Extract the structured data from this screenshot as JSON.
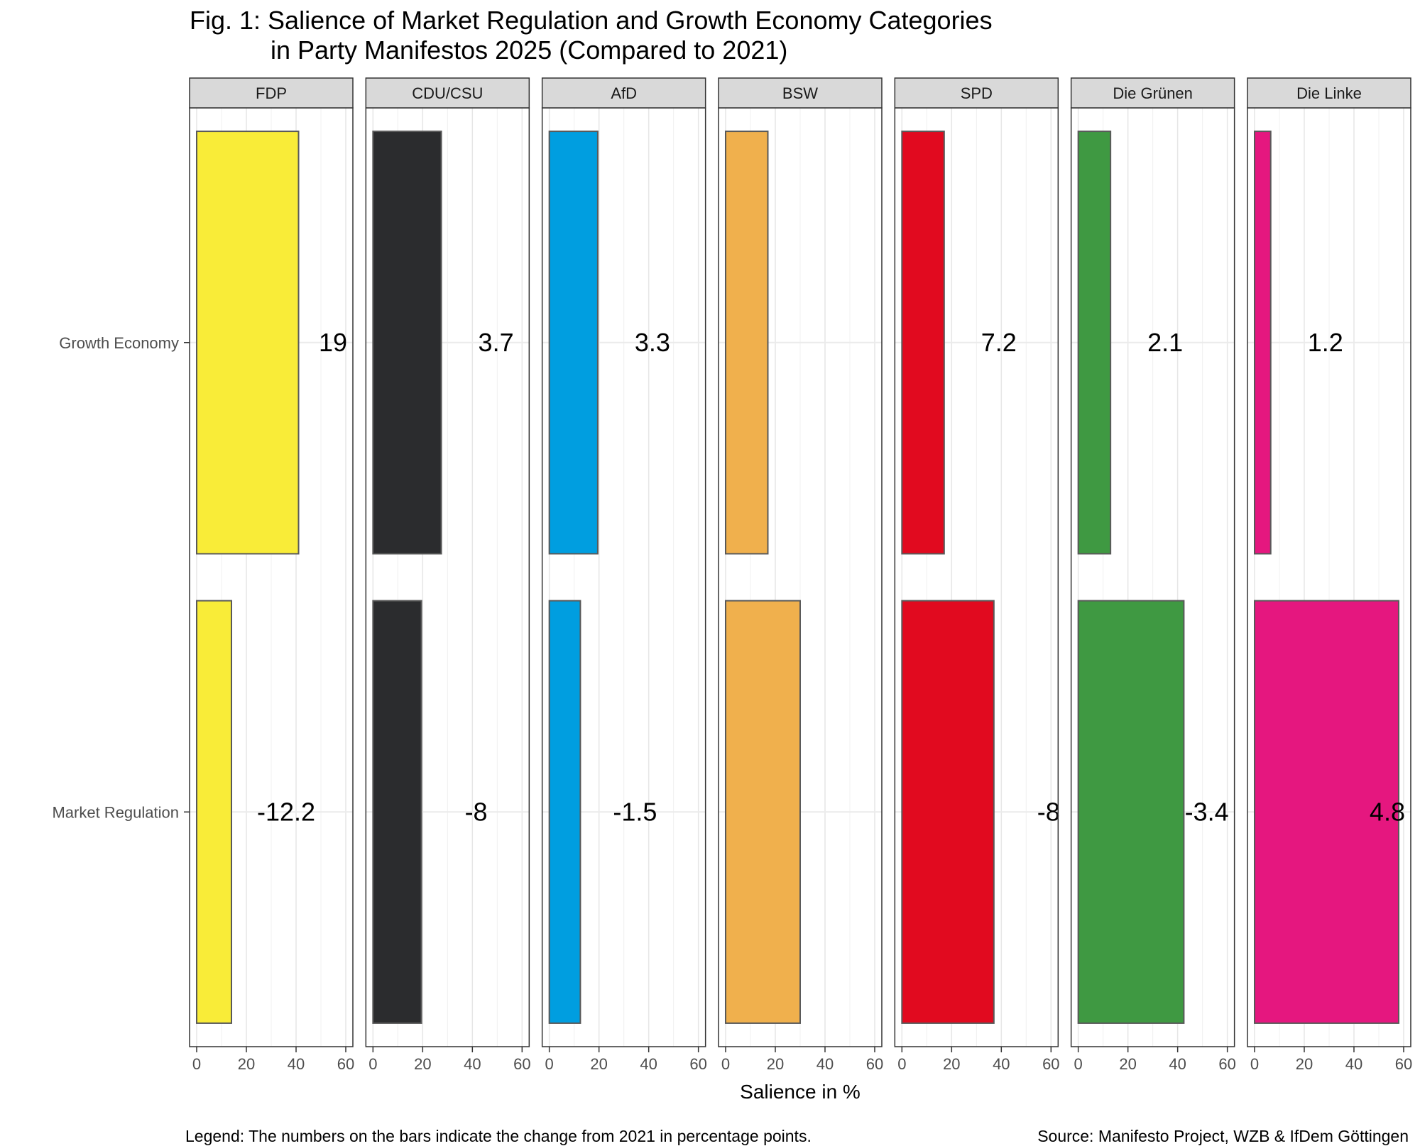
{
  "title": {
    "line1": "Fig. 1: Salience of Market Regulation and Growth Economy Categories",
    "line2": "in Party Manifestos 2025 (Compared to 2021)"
  },
  "legend_note": "Legend: The numbers on the bars indicate the change from 2021 in percentage points.",
  "source_note": "Source: Manifesto Project, WZB & IfDem Göttingen",
  "chart_data": {
    "type": "bar",
    "orientation": "horizontal",
    "title": "Fig. 1: Salience of Market Regulation and Growth Economy Categories in Party Manifestos 2025 (Compared to 2021)",
    "xlabel": "Salience in %",
    "ylabel": "",
    "xlim": [
      0,
      60
    ],
    "xticks": [
      0,
      20,
      40,
      60
    ],
    "grid": true,
    "categories": [
      "Growth Economy",
      "Market Regulation"
    ],
    "panels": [
      {
        "party": "FDP",
        "color": "#F9EC38",
        "values": [
          41,
          14
        ],
        "changes": [
          "19",
          "-12.2"
        ]
      },
      {
        "party": "CDU/CSU",
        "color": "#2B2C2E",
        "values": [
          27.5,
          19.5
        ],
        "changes": [
          "3.7",
          "-8"
        ]
      },
      {
        "party": "AfD",
        "color": "#009EE0",
        "values": [
          19.5,
          12.5
        ],
        "changes": [
          "3.3",
          "-1.5"
        ]
      },
      {
        "party": "BSW",
        "color": "#F0B04D",
        "values": [
          17,
          30
        ],
        "changes": [
          "",
          ""
        ]
      },
      {
        "party": "SPD",
        "color": "#E10A1F",
        "values": [
          17,
          37
        ],
        "changes": [
          "7.2",
          "-8"
        ]
      },
      {
        "party": "Die Grünen",
        "color": "#3F9942",
        "values": [
          13,
          42.5
        ],
        "changes": [
          "2.1",
          "-3.4"
        ]
      },
      {
        "party": "Die Linke",
        "color": "#E5177F",
        "values": [
          6.5,
          58
        ],
        "changes": [
          "1.2",
          "4.8"
        ]
      }
    ]
  }
}
